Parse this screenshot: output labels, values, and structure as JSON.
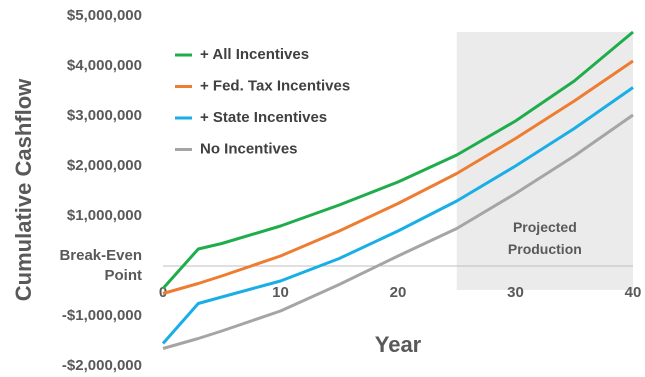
{
  "chart_data": {
    "type": "line",
    "y_label": "Cumulative Cashflow",
    "x_label": "Year",
    "annotation": "Projected Production",
    "shaded_region": [
      25,
      40
    ],
    "x": [
      0,
      3,
      5,
      10,
      15,
      20,
      25,
      30,
      35,
      40
    ],
    "xlim": [
      0,
      40
    ],
    "xticks": [
      0,
      10,
      20,
      30,
      40
    ],
    "ylim": [
      -2000000,
      5000000
    ],
    "yticks": [
      {
        "value": -2000000,
        "label": "-$2,000,000"
      },
      {
        "value": -1000000,
        "label": "-$1,000,000"
      },
      {
        "value": 0,
        "label": "Break-Even Point"
      },
      {
        "value": 1000000,
        "label": "$1,000,000"
      },
      {
        "value": 2000000,
        "label": "$2,000,000"
      },
      {
        "value": 3000000,
        "label": "$3,000,000"
      },
      {
        "value": 4000000,
        "label": "$4,000,000"
      },
      {
        "value": 5000000,
        "label": "$5,000,000"
      }
    ],
    "series": [
      {
        "name": "+ All Incentives",
        "color": "#1fad4b",
        "values": [
          -450000,
          340000,
          450000,
          800000,
          1220000,
          1680000,
          2220000,
          2900000,
          3700000,
          4680000
        ]
      },
      {
        "name": "+ Fed. Tax Incentives",
        "color": "#ee7d31",
        "values": [
          -550000,
          -350000,
          -200000,
          200000,
          700000,
          1250000,
          1850000,
          2550000,
          3300000,
          4100000
        ]
      },
      {
        "name": "+ State Incentives",
        "color": "#19aee6",
        "values": [
          -1550000,
          -750000,
          -620000,
          -300000,
          150000,
          700000,
          1300000,
          2000000,
          2750000,
          3570000
        ]
      },
      {
        "name": "No Incentives",
        "color": "#a5a5a5",
        "values": [
          -1650000,
          -1450000,
          -1300000,
          -900000,
          -370000,
          200000,
          750000,
          1450000,
          2200000,
          3020000
        ]
      }
    ]
  }
}
